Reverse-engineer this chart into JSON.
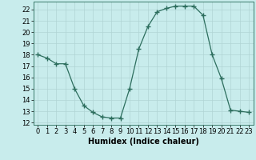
{
  "x": [
    0,
    1,
    2,
    3,
    4,
    5,
    6,
    7,
    8,
    9,
    10,
    11,
    12,
    13,
    14,
    15,
    16,
    17,
    18,
    19,
    20,
    21,
    22,
    23
  ],
  "y": [
    18.0,
    17.7,
    17.2,
    17.2,
    15.0,
    13.5,
    12.9,
    12.5,
    12.4,
    12.4,
    15.0,
    18.5,
    20.5,
    21.8,
    22.1,
    22.3,
    22.3,
    22.3,
    21.5,
    18.0,
    15.9,
    13.1,
    13.0,
    12.9
  ],
  "xlabel": "Humidex (Indice chaleur)",
  "ylim": [
    11.8,
    22.7
  ],
  "xlim": [
    -0.5,
    23.5
  ],
  "yticks": [
    12,
    13,
    14,
    15,
    16,
    17,
    18,
    19,
    20,
    21,
    22
  ],
  "xticks": [
    0,
    1,
    2,
    3,
    4,
    5,
    6,
    7,
    8,
    9,
    10,
    11,
    12,
    13,
    14,
    15,
    16,
    17,
    18,
    19,
    20,
    21,
    22,
    23
  ],
  "line_color": "#2d6e5e",
  "marker_color": "#2d6e5e",
  "bg_color": "#c8ecec",
  "grid_color": "#b0d4d4",
  "tick_fontsize": 6,
  "xlabel_fontsize": 7
}
